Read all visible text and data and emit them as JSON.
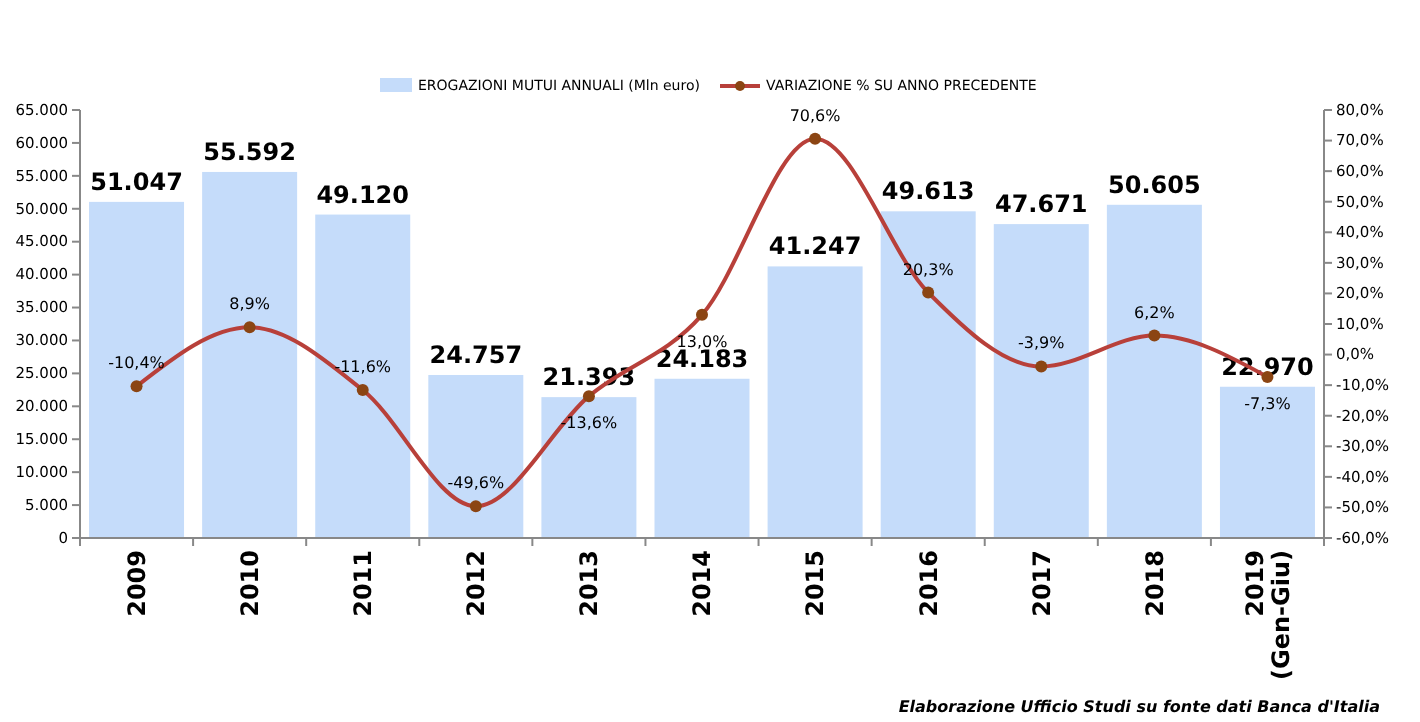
{
  "chart_data": {
    "type": "bar",
    "categories": [
      "2009",
      "2010",
      "2011",
      "2012",
      "2013",
      "2014",
      "2015",
      "2016",
      "2017",
      "2018",
      "2019 (Gen-Giu)"
    ],
    "series": [
      {
        "name": "EROGAZIONI MUTUI ANNUALI (Mln euro)",
        "color": "#c5dcfa",
        "values": [
          51047,
          55592,
          49120,
          24757,
          21393,
          24183,
          41247,
          49613,
          47671,
          50605,
          22970
        ],
        "value_labels": [
          "51.047",
          "55.592",
          "49.120",
          "24.757",
          "21.393",
          "24.183",
          "41.247",
          "49.613",
          "47.671",
          "50.605",
          "22.970"
        ]
      },
      {
        "name": "VARIAZIONE % SU ANNO PRECEDENTE",
        "type": "line",
        "axis": "y2",
        "color": "#b8403a",
        "marker": "circle",
        "values": [
          -10.4,
          8.9,
          -11.6,
          -49.6,
          -13.6,
          13.0,
          70.6,
          20.3,
          -3.9,
          6.2,
          -7.3
        ],
        "value_labels": [
          "-10,4%",
          "8,9%",
          "-11,6%",
          "-49,6%",
          "-13,6%",
          "13,0%",
          "70,6%",
          "20,3%",
          "-3,9%",
          "6,2%",
          "-7,3%"
        ]
      }
    ],
    "ylim": [
      0,
      65000
    ],
    "yticks": [
      {
        "value": 0,
        "label": "0"
      },
      {
        "value": 5000,
        "label": "5.000"
      },
      {
        "value": 10000,
        "label": "10.000"
      },
      {
        "value": 15000,
        "label": "15.000"
      },
      {
        "value": 20000,
        "label": "20.000"
      },
      {
        "value": 25000,
        "label": "25.000"
      },
      {
        "value": 30000,
        "label": "30.000"
      },
      {
        "value": 35000,
        "label": "35.000"
      },
      {
        "value": 40000,
        "label": "40.000"
      },
      {
        "value": 45000,
        "label": "45.000"
      },
      {
        "value": 50000,
        "label": "50.000"
      },
      {
        "value": 55000,
        "label": "55.000"
      },
      {
        "value": 60000,
        "label": "60.000"
      },
      {
        "value": 65000,
        "label": "65.000"
      }
    ],
    "y2lim": [
      -60,
      80
    ],
    "y2ticks": [
      {
        "value": -60,
        "label": "-60,0%"
      },
      {
        "value": -50,
        "label": "-50,0%"
      },
      {
        "value": -40,
        "label": "-40,0%"
      },
      {
        "value": -30,
        "label": "-30,0%"
      },
      {
        "value": -20,
        "label": "-20,0%"
      },
      {
        "value": -10,
        "label": "-10,0%"
      },
      {
        "value": 0,
        "label": "0,0%"
      },
      {
        "value": 10,
        "label": "10,0%"
      },
      {
        "value": 20,
        "label": "20,0%"
      },
      {
        "value": 30,
        "label": "30,0%"
      },
      {
        "value": 40,
        "label": "40,0%"
      },
      {
        "value": 50,
        "label": "50,0%"
      },
      {
        "value": 60,
        "label": "60,0%"
      },
      {
        "value": 70,
        "label": "70,0%"
      },
      {
        "value": 80,
        "label": "80,0%"
      }
    ],
    "grid": false,
    "legend": "top",
    "annotations": [
      "Elaborazione Ufficio Studi su fonte dati Banca d'Italia"
    ]
  }
}
